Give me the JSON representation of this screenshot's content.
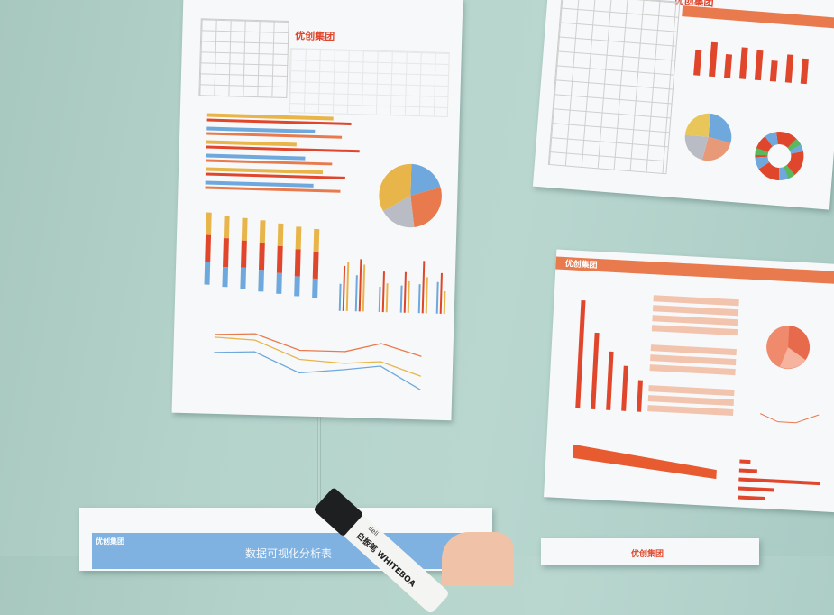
{
  "scene": {
    "description_free": true
  },
  "papers": {
    "left": {
      "logo": "优创集团"
    },
    "top_right": {
      "logo": "优创集团"
    },
    "mid_right": {
      "logo": "优创集团"
    },
    "bottom_left": {
      "logo": "优创集团",
      "title": "数据可视化分析表"
    },
    "bottom_right": {
      "logo": "优创集团"
    }
  },
  "marker": {
    "brand": "deli",
    "label": "白板笔 WHITEBOA"
  },
  "colors": {
    "wall": "#b4d3cb",
    "orange": "#e97a4d",
    "blue": "#6fa8dc",
    "yellow": "#e8b54a",
    "band_blue": "#7fb2e0"
  }
}
